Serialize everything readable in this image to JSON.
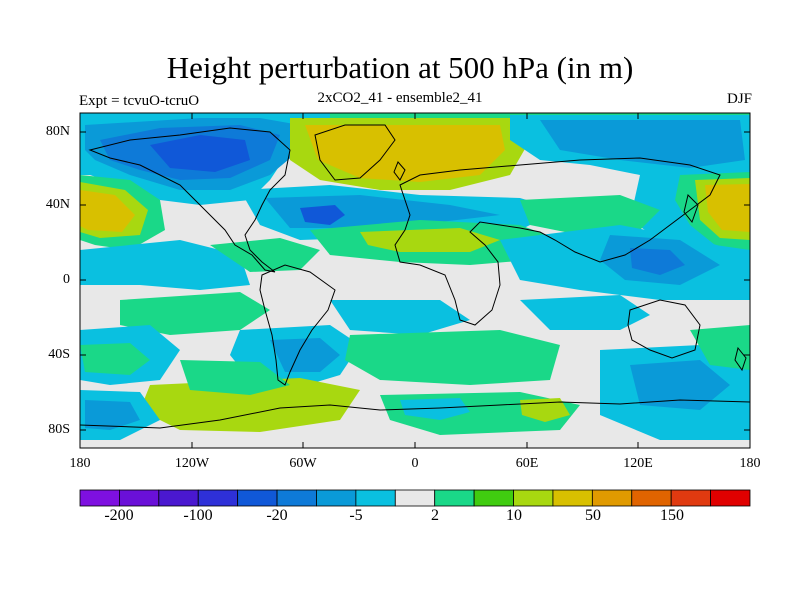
{
  "title": "Height perturbation at 500 hPa (in m)",
  "subtitle_left": "Expt = tcvuO-tcruO",
  "subtitle_center": "2xCO2_41 - ensemble2_41",
  "subtitle_right": "DJF",
  "lat_labels": [
    "80N",
    "40N",
    "0",
    "40S",
    "80S"
  ],
  "lon_labels": [
    "180",
    "120W",
    "60W",
    "0",
    "60E",
    "120E",
    "180"
  ],
  "colorbar": {
    "colors": [
      "#7e10e0",
      "#6a10d8",
      "#4a18d0",
      "#2e30d8",
      "#1058d8",
      "#0e7ad8",
      "#0a9ad8",
      "#0ac0e0",
      "#e8e8e8",
      "#1ad888",
      "#40cc10",
      "#a8d810",
      "#d8c000",
      "#e09a00",
      "#e06400",
      "#e03a10",
      "#e00000"
    ],
    "labels": [
      "-200",
      "-100",
      "-20",
      "-5",
      "2",
      "10",
      "50",
      "150"
    ]
  }
}
